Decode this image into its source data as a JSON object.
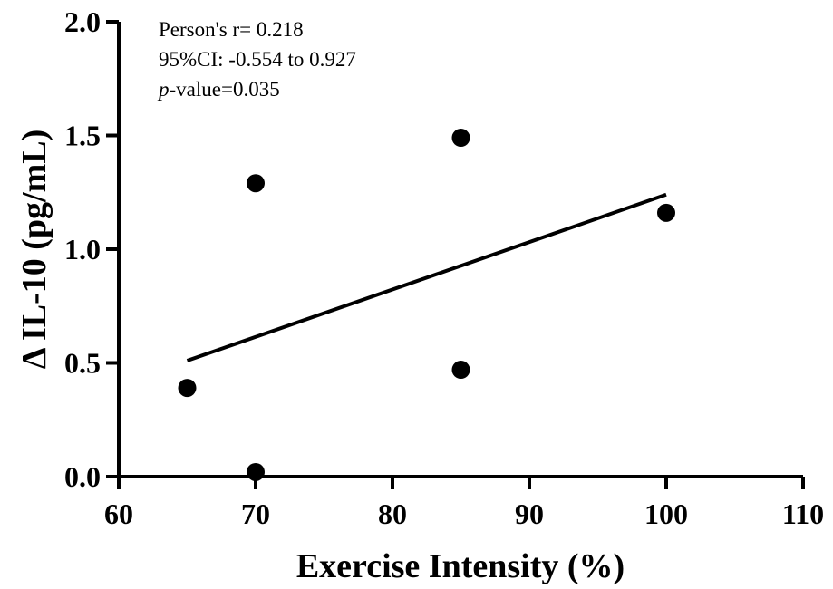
{
  "chart_data": {
    "type": "scatter",
    "xlabel": "Exercise Intensity (%)",
    "ylabel": "Δ IL-10 (pg/mL)",
    "xlim": [
      60,
      110
    ],
    "ylim": [
      0.0,
      2.0
    ],
    "xticks": [
      "60",
      "70",
      "80",
      "90",
      "100",
      "110"
    ],
    "yticks": [
      "0.0",
      "0.5",
      "1.0",
      "1.5",
      "2.0"
    ],
    "grid": false,
    "points": [
      {
        "x": 65,
        "y": 0.39
      },
      {
        "x": 70,
        "y": 0.02
      },
      {
        "x": 70,
        "y": 1.29
      },
      {
        "x": 85,
        "y": 0.47
      },
      {
        "x": 85,
        "y": 1.49
      },
      {
        "x": 100,
        "y": 1.16
      }
    ],
    "regression_line": {
      "x": [
        65,
        100
      ],
      "y": [
        0.51,
        1.24
      ]
    },
    "annotations": {
      "line1": "Person's r= 0.218",
      "line2": "95%CI: -0.554 to 0.927",
      "line3_italic": "p",
      "line3_rest": "-value=0.035"
    },
    "colors": {
      "points": "#000000",
      "line": "#000000",
      "axes": "#000000"
    }
  }
}
